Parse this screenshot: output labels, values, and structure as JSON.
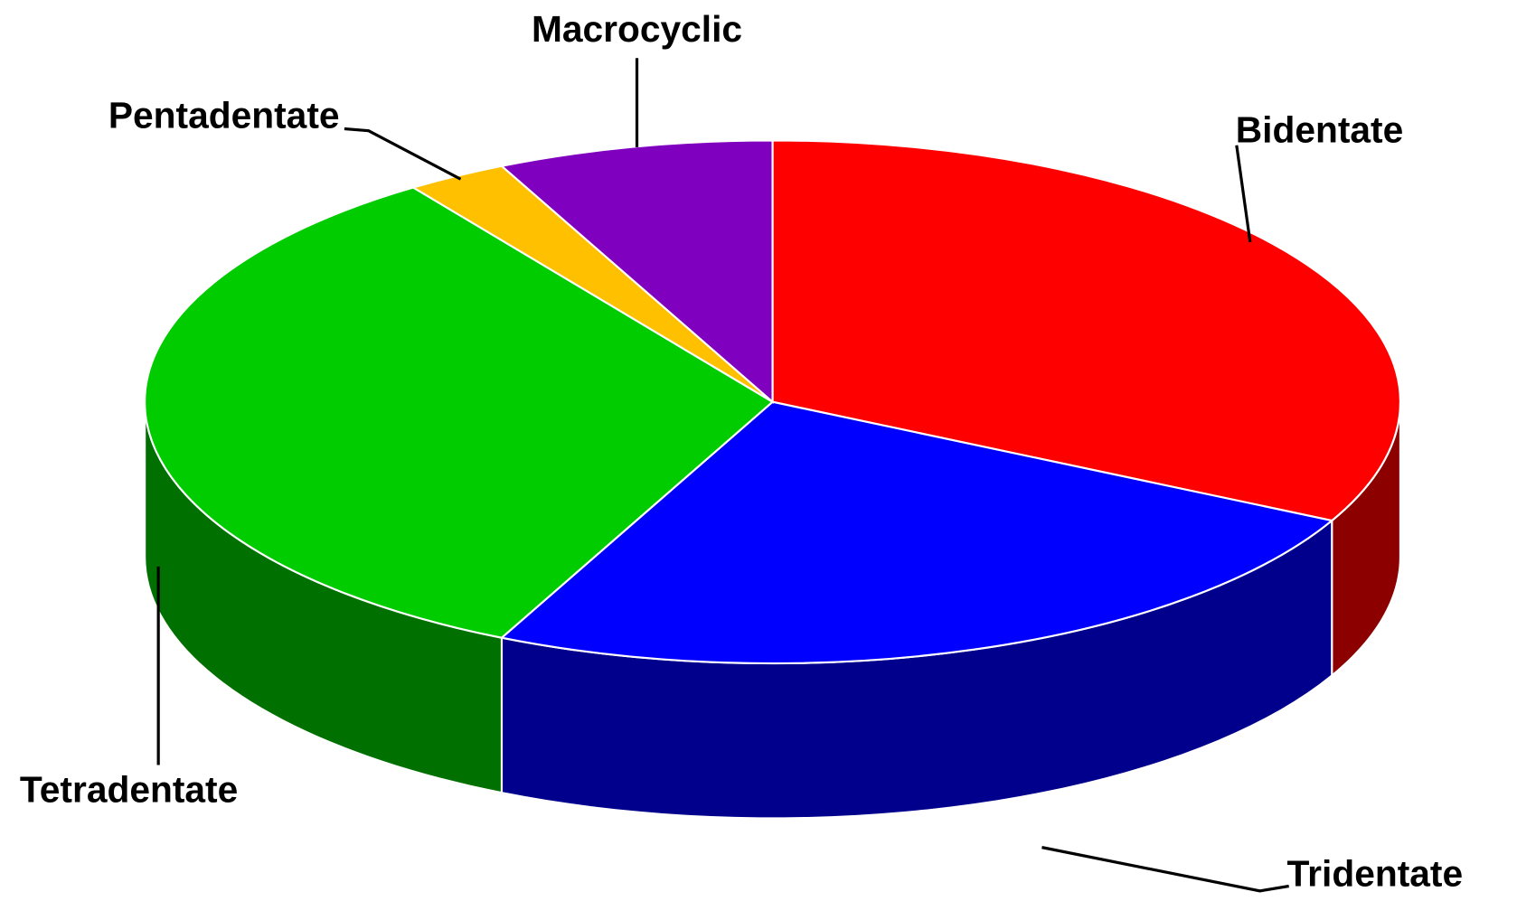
{
  "chart_data": {
    "type": "pie3d",
    "categories": [
      "Bidentate",
      "Tridentate",
      "Tetradentate",
      "Pentadentate",
      "Macrocyclic"
    ],
    "values": [
      32.5,
      24.6,
      33.2,
      2.6,
      7.1
    ],
    "colors": [
      "#ff0000",
      "#0000ff",
      "#00cc00",
      "#ffc000",
      "#8000c0"
    ]
  }
}
